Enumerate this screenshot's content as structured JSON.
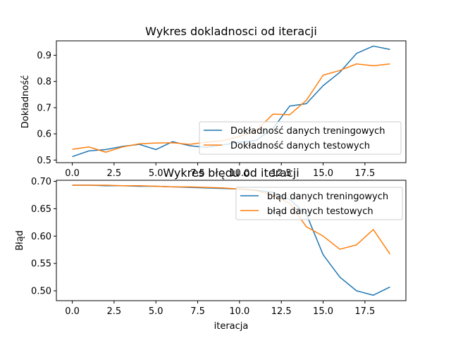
{
  "colors": {
    "series1": "#1f77b4",
    "series2": "#ff7f0e"
  },
  "chart_data": [
    {
      "type": "line",
      "title": "Wykres dokladnosci od iteracji",
      "xlabel": "",
      "ylabel": "Dokładność",
      "xlim": [
        -0.95,
        19.95
      ],
      "ylim": [
        0.49,
        0.955
      ],
      "xticks": [
        0,
        2.5,
        5,
        7.5,
        10,
        12.5,
        15,
        17.5
      ],
      "xtick_labels": [
        "0.0",
        "2.5",
        "5.0",
        "7.5",
        "10.0",
        "12.5",
        "15.0",
        "17.5"
      ],
      "yticks": [
        0.5,
        0.6,
        0.7,
        0.8,
        0.9
      ],
      "ytick_labels": [
        "0.5",
        "0.6",
        "0.7",
        "0.8",
        "0.9"
      ],
      "legend": "right",
      "x": [
        0,
        1,
        2,
        3,
        4,
        5,
        6,
        7,
        8,
        9,
        10,
        11,
        12,
        13,
        14,
        15,
        16,
        17,
        18,
        19
      ],
      "series": [
        {
          "name": "Dokładność danych treningowych",
          "values": [
            0.513,
            0.535,
            0.54,
            0.552,
            0.56,
            0.54,
            0.57,
            0.555,
            0.548,
            0.558,
            0.568,
            0.575,
            0.62,
            0.706,
            0.715,
            0.784,
            0.835,
            0.907,
            0.935,
            0.922
          ]
        },
        {
          "name": "Dokładność danych testowych",
          "values": [
            0.541,
            0.55,
            0.53,
            0.55,
            0.562,
            0.565,
            0.566,
            0.56,
            0.568,
            0.574,
            0.59,
            0.612,
            0.675,
            0.673,
            0.728,
            0.824,
            0.842,
            0.867,
            0.86,
            0.867
          ]
        }
      ]
    },
    {
      "type": "line",
      "title": "Wykres błędu od iteracji",
      "xlabel": "iteracja",
      "ylabel": "Błąd",
      "xlim": [
        -0.95,
        19.95
      ],
      "ylim": [
        0.482,
        0.702
      ],
      "xticks": [
        0,
        2.5,
        5,
        7.5,
        10,
        12.5,
        15,
        17.5
      ],
      "xtick_labels": [
        "0.0",
        "2.5",
        "5.0",
        "7.5",
        "10.0",
        "12.5",
        "15.0",
        "17.5"
      ],
      "yticks": [
        0.5,
        0.55,
        0.6,
        0.65,
        0.7
      ],
      "ytick_labels": [
        "0.50",
        "0.55",
        "0.60",
        "0.65",
        "0.70"
      ],
      "legend": "top-right",
      "x": [
        0,
        1,
        2,
        3,
        4,
        5,
        6,
        7,
        8,
        9,
        10,
        11,
        12,
        13,
        14,
        15,
        16,
        17,
        18,
        19
      ],
      "series": [
        {
          "name": "błąd danych treningowych",
          "values": [
            0.693,
            0.693,
            0.692,
            0.692,
            0.691,
            0.691,
            0.69,
            0.689,
            0.688,
            0.687,
            0.686,
            0.684,
            0.68,
            0.667,
            0.64,
            0.566,
            0.525,
            0.5,
            0.492,
            0.507
          ]
        },
        {
          "name": "błąd danych testowych",
          "values": [
            0.693,
            0.693,
            0.693,
            0.692,
            0.692,
            0.691,
            0.69,
            0.69,
            0.689,
            0.688,
            0.686,
            0.683,
            0.675,
            0.66,
            0.617,
            0.6,
            0.576,
            0.584,
            0.612,
            0.567
          ]
        }
      ]
    }
  ]
}
